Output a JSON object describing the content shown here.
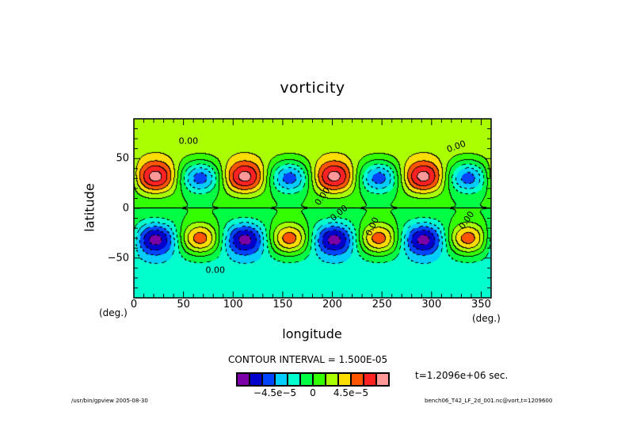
{
  "title": "vorticity",
  "chart_data": {
    "type": "heatmap",
    "subtype": "filled contour",
    "title": "vorticity",
    "xlabel": "longitude",
    "ylabel": "latitude",
    "xunit": "(deg.)",
    "yunit": "(deg.)",
    "xlim": [
      0,
      360
    ],
    "ylim": [
      -90,
      90
    ],
    "xticks": [
      0,
      50,
      100,
      150,
      200,
      250,
      300,
      350
    ],
    "yticks": [
      -50,
      0,
      50
    ],
    "xtick_labels": [
      "0",
      "50",
      "100",
      "150",
      "200",
      "250",
      "300",
      "350"
    ],
    "ytick_labels": [
      "-50",
      "0",
      "50"
    ],
    "contour_interval_label": "CONTOUR INTERVAL = 1.500E-05",
    "contour_interval": 1.5e-05,
    "contour_zero_label": "0.00",
    "levels": [
      -7.5e-05,
      -6e-05,
      -4.5e-05,
      -3e-05,
      -1.5e-05,
      0,
      1.5e-05,
      3e-05,
      4.5e-05,
      6e-05,
      7.5e-05
    ],
    "colors": [
      "#7b00a8",
      "#0000cc",
      "#0044ff",
      "#00ccff",
      "#00ffcc",
      "#00ff44",
      "#33ff00",
      "#aaff00",
      "#ffdd00",
      "#ff5500",
      "#ff2222",
      "#ff9999"
    ],
    "colorbar_labels": [
      "-4.5e-5",
      "0",
      "4.5e-5"
    ],
    "colorbar_label_values": [
      -4.5e-05,
      0,
      4.5e-05
    ],
    "wave_features": {
      "zonal_wavenumber": 4,
      "nh_positive_max_lon": [
        22,
        112,
        202,
        292
      ],
      "nh_negative_min_lon": [
        67,
        157,
        247,
        337
      ],
      "sh_negative_min_lon": [
        22,
        112,
        202,
        292
      ],
      "sh_positive_max_lon": [
        67,
        157,
        247,
        337
      ],
      "extrema_lat": [
        30,
        -30
      ]
    }
  },
  "time_label": "t=1.2096e+06 sec.",
  "footer": {
    "left": "/usr/bin/gpview  2005-08-30",
    "right": "bench06_T42_LF_2d_001.nc@vort,t=1209600"
  }
}
